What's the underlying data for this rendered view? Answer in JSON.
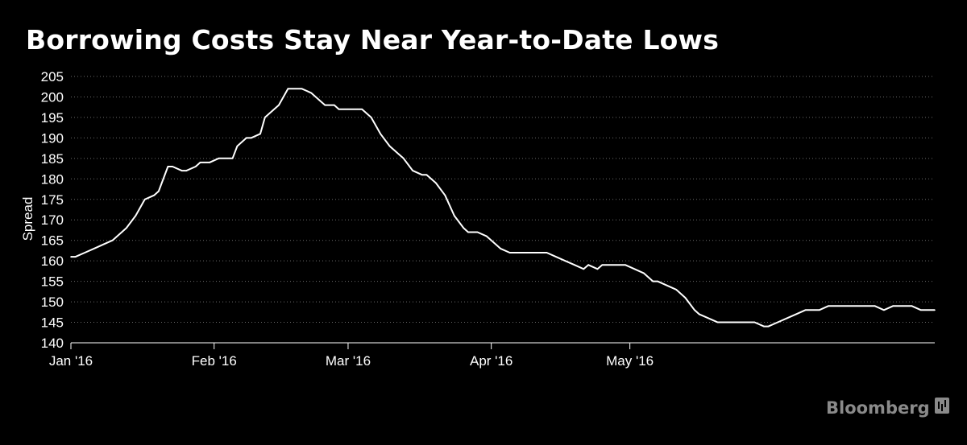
{
  "chart_data": {
    "type": "line",
    "title": "Borrowing Costs Stay Near Year-to-Date Lows",
    "xlabel": "",
    "ylabel": "Spread",
    "ylim": [
      140,
      205
    ],
    "yticks": [
      140,
      145,
      150,
      155,
      160,
      165,
      170,
      175,
      180,
      185,
      190,
      195,
      200,
      205
    ],
    "xtick_labels": [
      "Jan '16",
      "Feb '16",
      "Mar '16",
      "Apr '16",
      "May '16"
    ],
    "xtick_dates": [
      "2016-01-01",
      "2016-02-01",
      "2016-03-01",
      "2016-04-01",
      "2016-05-01"
    ],
    "grid": "horizontal dotted",
    "line_color": "#ffffff",
    "series": [
      {
        "points": [
          [
            "2016-01-01",
            161
          ],
          [
            "2016-01-02",
            161
          ],
          [
            "2016-01-04",
            162
          ],
          [
            "2016-01-06",
            163
          ],
          [
            "2016-01-08",
            164
          ],
          [
            "2016-01-10",
            165
          ],
          [
            "2016-01-12",
            167
          ],
          [
            "2016-01-13",
            168
          ],
          [
            "2016-01-15",
            171
          ],
          [
            "2016-01-17",
            175
          ],
          [
            "2016-01-19",
            176
          ],
          [
            "2016-01-20",
            177
          ],
          [
            "2016-01-22",
            183
          ],
          [
            "2016-01-23",
            183
          ],
          [
            "2016-01-25",
            182
          ],
          [
            "2016-01-26",
            182
          ],
          [
            "2016-01-28",
            183
          ],
          [
            "2016-01-29",
            184
          ],
          [
            "2016-01-31",
            184
          ],
          [
            "2016-02-02",
            185
          ],
          [
            "2016-02-04",
            185
          ],
          [
            "2016-02-05",
            185
          ],
          [
            "2016-02-06",
            188
          ],
          [
            "2016-02-08",
            190
          ],
          [
            "2016-02-09",
            190
          ],
          [
            "2016-02-11",
            191
          ],
          [
            "2016-02-12",
            195
          ],
          [
            "2016-02-14",
            197
          ],
          [
            "2016-02-15",
            198
          ],
          [
            "2016-02-17",
            202
          ],
          [
            "2016-02-18",
            202
          ],
          [
            "2016-02-20",
            202
          ],
          [
            "2016-02-22",
            201
          ],
          [
            "2016-02-24",
            199
          ],
          [
            "2016-02-25",
            198
          ],
          [
            "2016-02-27",
            198
          ],
          [
            "2016-02-28",
            197
          ],
          [
            "2016-03-01",
            197
          ],
          [
            "2016-03-03",
            197
          ],
          [
            "2016-03-04",
            197
          ],
          [
            "2016-03-06",
            195
          ],
          [
            "2016-03-08",
            191
          ],
          [
            "2016-03-10",
            188
          ],
          [
            "2016-03-12",
            186
          ],
          [
            "2016-03-13",
            185
          ],
          [
            "2016-03-15",
            182
          ],
          [
            "2016-03-17",
            181
          ],
          [
            "2016-03-18",
            181
          ],
          [
            "2016-03-20",
            179
          ],
          [
            "2016-03-22",
            176
          ],
          [
            "2016-03-24",
            171
          ],
          [
            "2016-03-26",
            168
          ],
          [
            "2016-03-27",
            167
          ],
          [
            "2016-03-29",
            167
          ],
          [
            "2016-03-31",
            166
          ],
          [
            "2016-04-01",
            165
          ],
          [
            "2016-04-03",
            163
          ],
          [
            "2016-04-05",
            162
          ],
          [
            "2016-04-06",
            162
          ],
          [
            "2016-04-08",
            162
          ],
          [
            "2016-04-10",
            162
          ],
          [
            "2016-04-12",
            162
          ],
          [
            "2016-04-13",
            162
          ],
          [
            "2016-04-15",
            161
          ],
          [
            "2016-04-17",
            160
          ],
          [
            "2016-04-19",
            159
          ],
          [
            "2016-04-21",
            158
          ],
          [
            "2016-04-22",
            159
          ],
          [
            "2016-04-24",
            158
          ],
          [
            "2016-04-25",
            159
          ],
          [
            "2016-04-27",
            159
          ],
          [
            "2016-04-29",
            159
          ],
          [
            "2016-04-30",
            159
          ],
          [
            "2016-05-02",
            158
          ],
          [
            "2016-05-04",
            157
          ],
          [
            "2016-05-06",
            155
          ],
          [
            "2016-05-07",
            155
          ],
          [
            "2016-05-09",
            154
          ],
          [
            "2016-05-11",
            153
          ],
          [
            "2016-05-13",
            151
          ],
          [
            "2016-05-15",
            148
          ],
          [
            "2016-05-16",
            147
          ],
          [
            "2016-05-18",
            146
          ],
          [
            "2016-05-20",
            145
          ],
          [
            "2016-05-22",
            145
          ],
          [
            "2016-05-24",
            145
          ],
          [
            "2016-05-26",
            145
          ],
          [
            "2016-05-28",
            145
          ],
          [
            "2016-05-30",
            144
          ],
          [
            "2016-05-31",
            144
          ],
          [
            "2016-06-02",
            145
          ],
          [
            "2016-06-04",
            146
          ],
          [
            "2016-06-06",
            147
          ],
          [
            "2016-06-08",
            148
          ],
          [
            "2016-06-09",
            148
          ],
          [
            "2016-06-11",
            148
          ],
          [
            "2016-06-13",
            149
          ],
          [
            "2016-06-15",
            149
          ],
          [
            "2016-06-17",
            149
          ],
          [
            "2016-06-19",
            149
          ],
          [
            "2016-06-21",
            149
          ],
          [
            "2016-06-23",
            149
          ],
          [
            "2016-06-25",
            148
          ],
          [
            "2016-06-27",
            149
          ],
          [
            "2016-06-29",
            149
          ],
          [
            "2016-07-01",
            149
          ],
          [
            "2016-07-03",
            148
          ],
          [
            "2016-07-06",
            148
          ]
        ]
      }
    ]
  },
  "branding": {
    "name": "Bloomberg",
    "icon": "bloomberg-terminal-icon"
  }
}
